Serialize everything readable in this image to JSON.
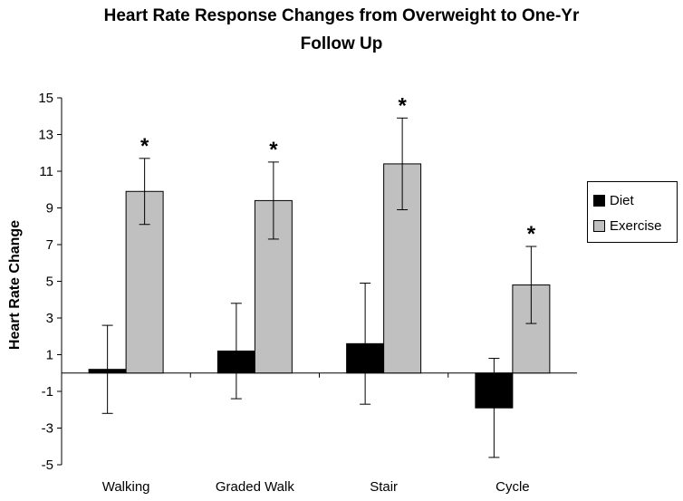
{
  "chart_data": {
    "type": "bar",
    "title_lines": [
      "Heart Rate Response Changes from Overweight to One-Yr",
      "Follow Up"
    ],
    "xlabel": "",
    "ylabel": "Heart Rate Change",
    "ylim": [
      -5,
      15
    ],
    "yticks": [
      15,
      13,
      11,
      9,
      7,
      5,
      3,
      1,
      -1,
      -3,
      -5
    ],
    "categories": [
      "Walking",
      "Graded Walk",
      "Stair",
      "Cycle"
    ],
    "series": [
      {
        "name": "Diet",
        "color": "#000000",
        "values": [
          0.2,
          1.2,
          1.6,
          -1.9
        ],
        "errors": [
          2.4,
          2.6,
          3.3,
          2.7
        ]
      },
      {
        "name": "Exercise",
        "color": "#c0c0c0",
        "values": [
          9.9,
          9.4,
          11.4,
          4.8
        ],
        "errors": [
          1.8,
          2.1,
          2.5,
          2.1
        ]
      }
    ],
    "annotations": [
      {
        "category": "Walking",
        "series": "Exercise",
        "text": "*"
      },
      {
        "category": "Graded Walk",
        "series": "Exercise",
        "text": "*"
      },
      {
        "category": "Stair",
        "series": "Exercise",
        "text": "*"
      },
      {
        "category": "Cycle",
        "series": "Exercise",
        "text": "*"
      }
    ],
    "grid": false,
    "legend_position": "right"
  }
}
